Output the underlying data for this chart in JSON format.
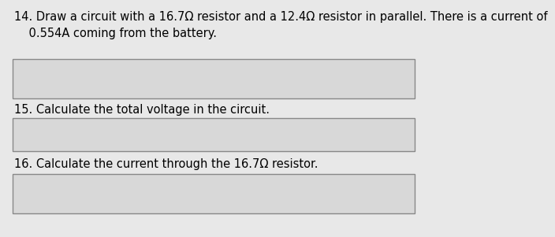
{
  "page_background": "#e8e8e8",
  "text_color": "#000000",
  "title_14": "14. Draw a circuit with a 16.7Ω resistor and a 12.4Ω resistor in parallel. There is a current of\n    0.554A coming from the battery.",
  "title_15": "15. Calculate the total voltage in the circuit.",
  "title_16": "16. Calculate the current through the 16.7Ω resistor.",
  "box_facecolor": "#d8d8d8",
  "box_edgecolor": "#888888",
  "font_size_main": 10.5,
  "fig_width": 6.77,
  "fig_height": 3.66
}
